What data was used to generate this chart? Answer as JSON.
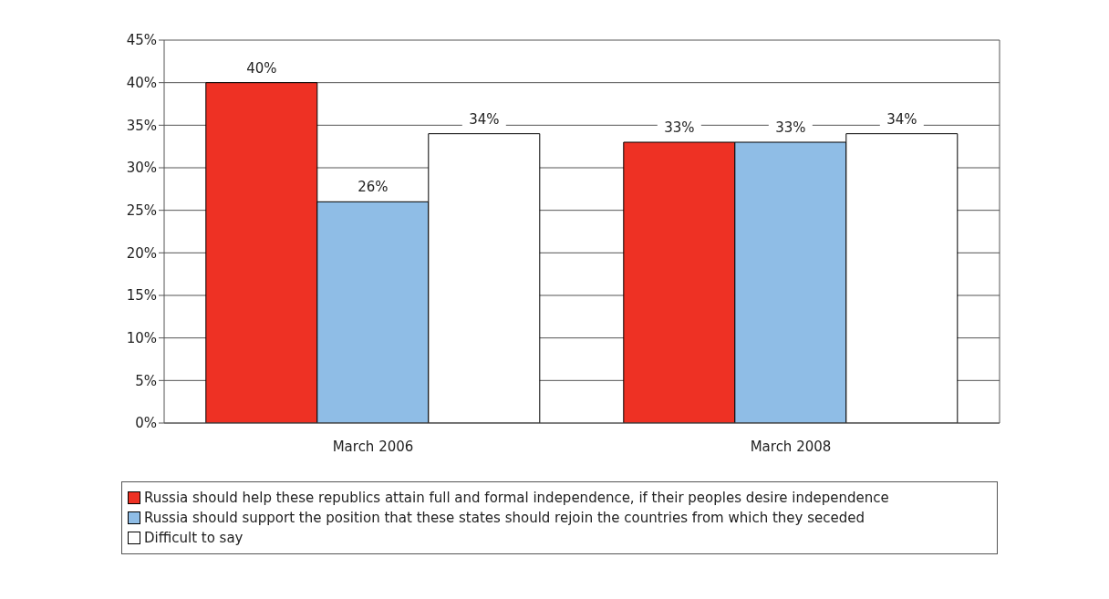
{
  "chart_data": {
    "type": "bar",
    "categories": [
      "March 2006",
      "March 2008"
    ],
    "series": [
      {
        "name": "Russia should help these republics attain full and formal independence, if their peoples desire independence",
        "color": "#ee3124",
        "values": [
          40,
          33
        ],
        "value_labels": [
          "40%",
          "33%"
        ]
      },
      {
        "name": "Russia should support the position that these states should rejoin the countries from which they seceded",
        "color": "#8fbde6",
        "values": [
          26,
          33
        ],
        "value_labels": [
          "26%",
          "33%"
        ]
      },
      {
        "name": "Difficult to say",
        "color": "#ffffff",
        "values": [
          34,
          34
        ],
        "value_labels": [
          "34%",
          "34%"
        ]
      }
    ],
    "ylim": [
      0,
      45
    ],
    "yticks": [
      {
        "value": 0,
        "label": "0%"
      },
      {
        "value": 5,
        "label": "5%"
      },
      {
        "value": 10,
        "label": "10%"
      },
      {
        "value": 15,
        "label": "15%"
      },
      {
        "value": 20,
        "label": "20%"
      },
      {
        "value": 25,
        "label": "25%"
      },
      {
        "value": 30,
        "label": "30%"
      },
      {
        "value": 35,
        "label": "35%"
      },
      {
        "value": 40,
        "label": "40%"
      },
      {
        "value": 45,
        "label": "45%"
      }
    ],
    "grid": "y",
    "legend": "bottom"
  }
}
